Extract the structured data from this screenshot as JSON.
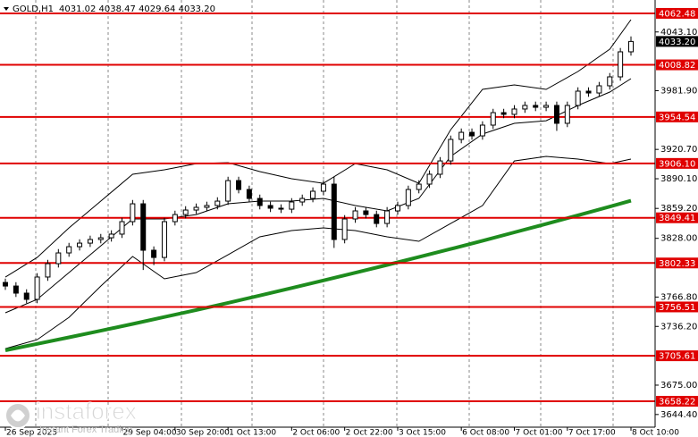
{
  "chart_data": {
    "type": "candlestick",
    "header": {
      "symbol": "GOLD,H1",
      "ohlc": "4031.02 4038.47 4029.64 4033.20"
    },
    "open": [
      3782.0,
      3778.3,
      3770.9,
      3764.4,
      3787.7,
      3801.6,
      3812.8,
      3819.3,
      3823.0,
      3826.8,
      3828.6,
      3832.4,
      3845.4,
      3864.0,
      3815.6,
      3808.1,
      3845.4,
      3852.8,
      3857.5,
      3860.3,
      3862.2,
      3866.8,
      3888.2,
      3878.9,
      3869.6,
      3862.2,
      3859.4,
      3858.4,
      3865.9,
      3869.6,
      3877.1,
      3884.5,
      3826.8,
      3848.2,
      3856.6,
      3852.8,
      3843.5,
      3856.6,
      3862.2,
      3878.9,
      3884.5,
      3894.8,
      3908.7,
      3931.1,
      3938.5,
      3934.8,
      3946.0,
      3959.0,
      3957.2,
      3962.8,
      3966.5,
      3964.6,
      3966.5,
      3947.9,
      3966.5,
      3981.4,
      3979.5,
      3987.0,
      3996.3,
      4022.4
    ],
    "high": [
      3786.0,
      3782.3,
      3774.9,
      3791.7,
      3805.6,
      3816.8,
      3823.3,
      3827.0,
      3830.8,
      3832.6,
      3836.4,
      3849.4,
      3868.0,
      3868.0,
      3819.6,
      3849.4,
      3856.8,
      3861.5,
      3864.3,
      3866.2,
      3870.8,
      3892.2,
      3892.2,
      3882.9,
      3873.6,
      3866.2,
      3863.4,
      3869.9,
      3873.6,
      3881.1,
      3888.5,
      3892.0,
      3852.2,
      3860.6,
      3860.6,
      3856.8,
      3860.6,
      3866.2,
      3882.9,
      3888.5,
      3898.8,
      3912.7,
      3935.1,
      3942.5,
      3942.5,
      3950.0,
      3963.0,
      3963.0,
      3966.8,
      3970.5,
      3970.5,
      3970.5,
      3970.5,
      3970.5,
      3985.4,
      3985.4,
      3991.0,
      4000.3,
      4026.4,
      4038.5
    ],
    "low": [
      3774.3,
      3766.9,
      3760.4,
      3760.4,
      3783.7,
      3797.6,
      3808.8,
      3815.3,
      3819.0,
      3822.8,
      3824.6,
      3828.4,
      3841.4,
      3795.0,
      3800.1,
      3804.1,
      3841.4,
      3848.8,
      3853.5,
      3856.3,
      3858.2,
      3862.8,
      3874.9,
      3865.6,
      3858.2,
      3855.4,
      3854.4,
      3854.4,
      3861.9,
      3865.6,
      3873.1,
      3818.0,
      3822.8,
      3844.2,
      3848.8,
      3839.5,
      3839.5,
      3852.6,
      3858.2,
      3874.9,
      3880.5,
      3890.8,
      3904.7,
      3927.1,
      3930.8,
      3930.8,
      3942.0,
      3953.2,
      3953.2,
      3958.8,
      3960.6,
      3960.6,
      3940.0,
      3943.9,
      3962.5,
      3975.5,
      3975.5,
      3983.0,
      3992.3,
      4018.4
    ],
    "close": [
      3778.3,
      3770.9,
      3764.4,
      3787.7,
      3801.6,
      3812.8,
      3819.3,
      3823.0,
      3826.8,
      3828.6,
      3832.4,
      3845.4,
      3864.0,
      3815.6,
      3808.1,
      3845.4,
      3852.8,
      3857.5,
      3860.3,
      3862.2,
      3866.8,
      3888.2,
      3878.9,
      3869.6,
      3862.2,
      3859.4,
      3858.4,
      3865.9,
      3869.6,
      3877.1,
      3884.5,
      3826.8,
      3848.2,
      3856.6,
      3852.8,
      3843.5,
      3856.6,
      3862.2,
      3878.9,
      3884.5,
      3894.8,
      3908.7,
      3931.1,
      3938.5,
      3934.8,
      3946.0,
      3959.0,
      3957.2,
      3962.8,
      3966.5,
      3964.6,
      3966.5,
      3947.9,
      3966.5,
      3981.4,
      3979.5,
      3987.0,
      3996.3,
      4022.4,
      4033.2
    ],
    "overlays": {
      "x": [
        0,
        3,
        6,
        9,
        12,
        15,
        18,
        21,
        24,
        27,
        30,
        33,
        36,
        39,
        42,
        45,
        48,
        51,
        54,
        57,
        59
      ],
      "series": [
        {
          "color": "#000000",
          "width": 1,
          "values": [
            3787.6,
            3808.1,
            3838.9,
            3866.8,
            3894.8,
            3899.4,
            3905.9,
            3906.9,
            3897.6,
            3890.1,
            3885.4,
            3905.9,
            3899.4,
            3885.4,
            3941.3,
            3983.3,
            3987.9,
            3983.3,
            4001.9,
            4025.2,
            4055.9
          ]
        },
        {
          "color": "#000000",
          "width": 1,
          "values": [
            3750.4,
            3764.4,
            3792.3,
            3820.2,
            3848.2,
            3848.2,
            3852.8,
            3864.0,
            3866.8,
            3866.8,
            3869.6,
            3862.2,
            3856.6,
            3869.6,
            3913.4,
            3936.7,
            3947.9,
            3950.6,
            3966.5,
            3980.5,
            3994.4
          ]
        },
        {
          "color": "#000000",
          "width": 1,
          "values": [
            3713.1,
            3722.4,
            3745.7,
            3778.3,
            3809.1,
            3785.8,
            3792.3,
            3810.9,
            3829.6,
            3836.1,
            3838.9,
            3836.1,
            3829.6,
            3824.9,
            3843.5,
            3862.2,
            3908.7,
            3913.4,
            3910.6,
            3905.9,
            3910.6
          ]
        },
        {
          "color": "#1e8c1e",
          "width": 4,
          "values": [
            3711.3,
            3718.0,
            3724.8,
            3731.7,
            3738.8,
            3746.0,
            3753.3,
            3760.8,
            3768.4,
            3776.2,
            3784.1,
            3792.1,
            3800.2,
            3808.5,
            3816.9,
            3825.5,
            3834.2,
            3843.0,
            3852.0,
            3861.1,
            3867.2
          ]
        }
      ]
    },
    "ylim": [
      3631.2,
      4076.4
    ],
    "yticks": [
      {
        "value": 4043.1,
        "label": "4043.10"
      },
      {
        "value": 3981.9,
        "label": "3981.90"
      },
      {
        "value": 3920.7,
        "label": "3920.70"
      },
      {
        "value": 3890.1,
        "label": "3890.10"
      },
      {
        "value": 3859.2,
        "label": "3859.20"
      },
      {
        "value": 3828.0,
        "label": "3828.00"
      },
      {
        "value": 3766.8,
        "label": "3766.80"
      },
      {
        "value": 3736.2,
        "label": "3736.20"
      },
      {
        "value": 3675.0,
        "label": "3675.00"
      },
      {
        "value": 3644.4,
        "label": "3644.40"
      }
    ],
    "xticks": [
      {
        "value": 0,
        "label": "26 Sep 2025"
      },
      {
        "value": 11,
        "label": "29 Sep 04:00"
      },
      {
        "value": 16,
        "label": "30 Sep 20:00"
      },
      {
        "value": 21,
        "label": "1 Oct 13:00"
      },
      {
        "value": 27,
        "label": "2 Oct 06:00"
      },
      {
        "value": 32,
        "label": "2 Oct 22:00"
      },
      {
        "value": 37,
        "label": "3 Oct 15:00"
      },
      {
        "value": 43,
        "label": "6 Oct 08:00"
      },
      {
        "value": 48,
        "label": "7 Oct 01:00"
      },
      {
        "value": 53,
        "label": "7 Oct 17:00"
      },
      {
        "value": 59,
        "label": "8 Oct 10:00"
      }
    ],
    "levels": [
      {
        "value": 4062.48,
        "label": "4062.48"
      },
      {
        "value": 4008.82,
        "label": "4008.82"
      },
      {
        "value": 3954.54,
        "label": "3954.54"
      },
      {
        "value": 3906.1,
        "label": "3906.10"
      },
      {
        "value": 3849.41,
        "label": "3849.41"
      },
      {
        "value": 3802.33,
        "label": "3802.33"
      },
      {
        "value": 3756.51,
        "label": "3756.51"
      },
      {
        "value": 3705.61,
        "label": "3705.61"
      },
      {
        "value": 3658.22,
        "label": "3658.22"
      }
    ],
    "level_color": "#e00000",
    "last_price": {
      "value": 4033.2,
      "label": "4033.20"
    },
    "logo": {
      "brand": "instaforex",
      "tagline": "Instant Forex Trading"
    }
  }
}
